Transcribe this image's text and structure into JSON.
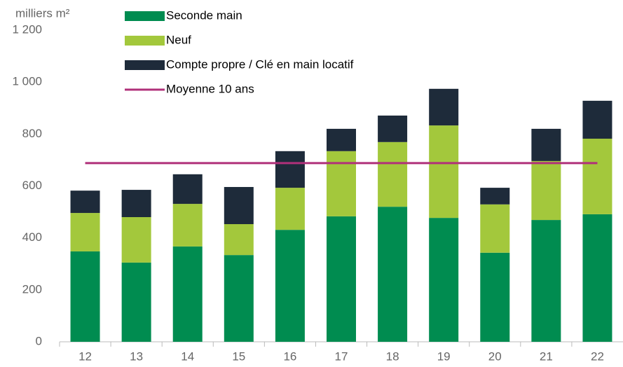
{
  "chart_data": {
    "type": "bar",
    "stacked": true,
    "y_axis_label": "milliers m²",
    "categories": [
      "12",
      "13",
      "14",
      "15",
      "16",
      "17",
      "18",
      "19",
      "20",
      "21",
      "22"
    ],
    "series": [
      {
        "name": "Seconde main",
        "color": "#008c50",
        "values": [
          348,
          305,
          367,
          334,
          431,
          483,
          520,
          477,
          343,
          469,
          491
        ]
      },
      {
        "name": "Neuf",
        "color": "#a3c83c",
        "values": [
          148,
          175,
          164,
          119,
          162,
          251,
          249,
          356,
          186,
          227,
          291
        ]
      },
      {
        "name": "Compte propre / Clé en main locatif",
        "color": "#1e2b3a",
        "values": [
          86,
          105,
          114,
          143,
          141,
          86,
          102,
          141,
          64,
          124,
          146
        ]
      },
      {
        "name": "Moyenne 10 ans",
        "color": "#b0307a",
        "type": "line",
        "values": [
          688,
          688,
          688,
          688,
          688,
          688,
          688,
          688,
          688,
          688,
          688
        ]
      }
    ],
    "ylim": [
      0,
      1200
    ],
    "yticks": [
      0,
      200,
      400,
      600,
      800,
      {
        "value": 1000,
        "label": "1 000"
      },
      {
        "value": 1200,
        "label": "1 200"
      }
    ],
    "grid": false
  }
}
